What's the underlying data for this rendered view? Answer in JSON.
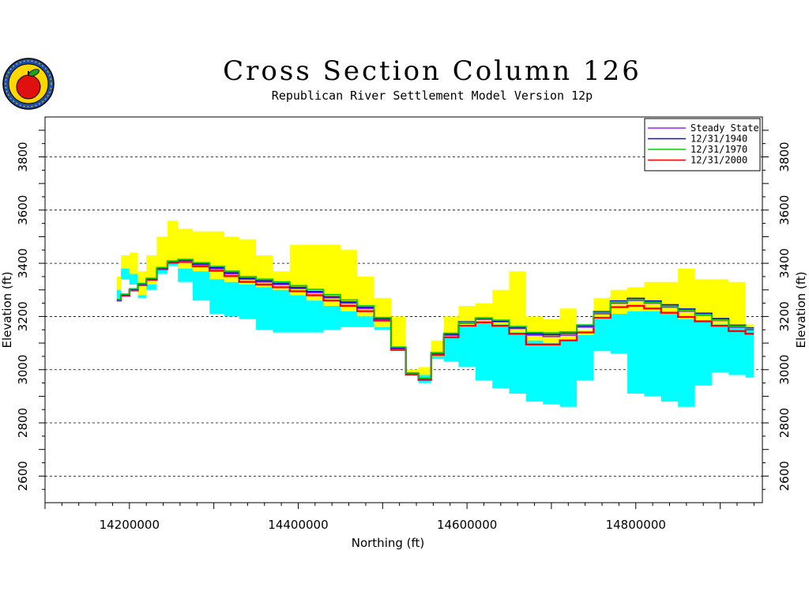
{
  "title": "Cross Section Column 126",
  "subtitle": "Republican River Settlement Model Version 12p",
  "chart_data": {
    "type": "area",
    "xlabel": "Northing (ft)",
    "ylabel": "Elevation (ft)",
    "xlim": [
      14100000,
      14950000
    ],
    "ylim": [
      2500,
      3950
    ],
    "x_ticks": [
      "14200000",
      "14400000",
      "14600000",
      "14800000"
    ],
    "y_ticks": [
      "2600",
      "2800",
      "3000",
      "3200",
      "3400",
      "3600",
      "3800"
    ],
    "grid": "horizontal dashed",
    "legend_position": "top-right",
    "legend": [
      {
        "name": "Steady State",
        "color": "#a020f0"
      },
      {
        "name": "12/31/1940",
        "color": "#1010d0"
      },
      {
        "name": "12/31/1970",
        "color": "#00d000"
      },
      {
        "name": "12/31/2000",
        "color": "#ff0000"
      }
    ],
    "fill_colors": {
      "layer1": "#ffff00",
      "layer2": "#00ffff"
    },
    "layer_surfaces": {
      "x": [
        14185000,
        14195000,
        14205000,
        14215000,
        14225000,
        14240000,
        14250000,
        14265000,
        14285000,
        14305000,
        14320000,
        14340000,
        14360000,
        14380000,
        14400000,
        14420000,
        14440000,
        14460000,
        14480000,
        14500000,
        14520000,
        14535000,
        14550000,
        14565000,
        14580000,
        14600000,
        14620000,
        14640000,
        14660000,
        14680000,
        14700000,
        14720000,
        14740000,
        14760000,
        14780000,
        14800000,
        14820000,
        14840000,
        14860000,
        14880000,
        14900000,
        14920000,
        14940000
      ],
      "top": [
        3350,
        3430,
        3440,
        3370,
        3430,
        3500,
        3560,
        3530,
        3520,
        3520,
        3500,
        3490,
        3430,
        3370,
        3470,
        3470,
        3470,
        3450,
        3350,
        3270,
        3200,
        3000,
        3010,
        3110,
        3200,
        3240,
        3250,
        3300,
        3370,
        3200,
        3190,
        3230,
        3150,
        3270,
        3300,
        3310,
        3330,
        3330,
        3380,
        3340,
        3340,
        3330,
        3170
      ],
      "middle": [
        3300,
        3380,
        3360,
        3280,
        3320,
        3380,
        3400,
        3380,
        3370,
        3340,
        3330,
        3320,
        3310,
        3300,
        3280,
        3260,
        3240,
        3220,
        3200,
        3160,
        3080,
        2990,
        2980,
        3050,
        3120,
        3160,
        3180,
        3170,
        3140,
        3110,
        3100,
        3110,
        3130,
        3190,
        3210,
        3220,
        3220,
        3210,
        3190,
        3180,
        3170,
        3165,
        3160
      ],
      "bottom": [
        3260,
        3340,
        3320,
        3270,
        3300,
        3360,
        3390,
        3330,
        3260,
        3210,
        3200,
        3190,
        3150,
        3140,
        3140,
        3140,
        3150,
        3160,
        3160,
        3150,
        3070,
        2980,
        2950,
        3040,
        3030,
        3010,
        2960,
        2930,
        2910,
        2880,
        2870,
        2860,
        2960,
        3070,
        3060,
        2910,
        2900,
        2880,
        2860,
        2940,
        2990,
        2980,
        2970
      ]
    },
    "series": [
      {
        "name": "Steady State",
        "values": [
          3260,
          3280,
          3300,
          3320,
          3340,
          3380,
          3405,
          3410,
          3395,
          3380,
          3360,
          3340,
          3330,
          3320,
          3305,
          3290,
          3270,
          3250,
          3230,
          3190,
          3080,
          2985,
          2965,
          3060,
          3130,
          3175,
          3190,
          3180,
          3155,
          3130,
          3125,
          3130,
          3160,
          3210,
          3250,
          3260,
          3250,
          3235,
          3220,
          3205,
          3185,
          3160,
          3150
        ]
      },
      {
        "name": "12/31/1940",
        "values": [
          3262,
          3282,
          3302,
          3322,
          3342,
          3382,
          3407,
          3412,
          3398,
          3383,
          3364,
          3344,
          3334,
          3324,
          3309,
          3294,
          3274,
          3254,
          3234,
          3192,
          3082,
          2987,
          2967,
          3062,
          3133,
          3180,
          3193,
          3183,
          3158,
          3135,
          3132,
          3137,
          3165,
          3218,
          3258,
          3268,
          3258,
          3244,
          3228,
          3212,
          3192,
          3167,
          3157
        ]
      },
      {
        "name": "12/31/1970",
        "values": [
          3264,
          3284,
          3304,
          3324,
          3344,
          3384,
          3409,
          3415,
          3402,
          3388,
          3370,
          3350,
          3340,
          3330,
          3316,
          3302,
          3282,
          3262,
          3240,
          3196,
          3085,
          2988,
          2968,
          3064,
          3137,
          3178,
          3195,
          3186,
          3162,
          3140,
          3138,
          3142,
          3168,
          3215,
          3255,
          3262,
          3252,
          3238,
          3222,
          3205,
          3186,
          3164,
          3155
        ]
      },
      {
        "name": "12/31/2000",
        "values": [
          3260,
          3278,
          3298,
          3318,
          3338,
          3378,
          3402,
          3405,
          3388,
          3372,
          3352,
          3330,
          3320,
          3310,
          3295,
          3280,
          3260,
          3240,
          3220,
          3185,
          3075,
          2982,
          2962,
          3055,
          3122,
          3165,
          3178,
          3165,
          3135,
          3095,
          3095,
          3110,
          3140,
          3195,
          3235,
          3240,
          3230,
          3214,
          3198,
          3182,
          3165,
          3145,
          3135
        ]
      }
    ]
  }
}
